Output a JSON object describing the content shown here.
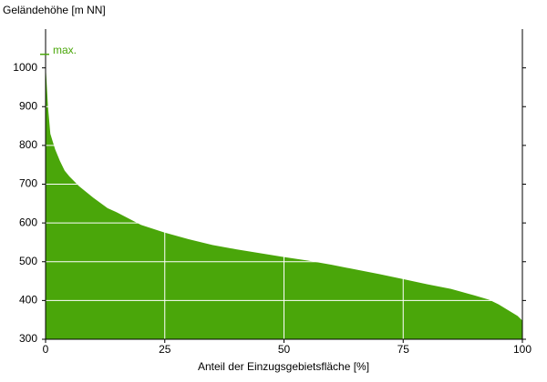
{
  "chart_data": {
    "type": "area",
    "y_label": "Geländehöhe [m NN]",
    "x_label": "Anteil der Einzugsgebietsfläche [%]",
    "x": [
      0,
      0.5,
      1,
      2,
      3,
      4,
      5,
      7,
      10,
      13,
      15,
      20,
      25,
      30,
      35,
      40,
      45,
      50,
      55,
      60,
      65,
      70,
      75,
      80,
      85,
      90,
      93,
      95,
      97,
      99,
      100
    ],
    "values": [
      1010,
      900,
      830,
      790,
      760,
      735,
      720,
      695,
      665,
      638,
      627,
      595,
      575,
      558,
      543,
      532,
      522,
      512,
      503,
      492,
      480,
      468,
      455,
      442,
      430,
      413,
      402,
      390,
      375,
      360,
      348
    ],
    "color": "#4aa60a",
    "annotation": {
      "text": "max.",
      "value": 1035
    },
    "xlim": [
      0,
      100
    ],
    "xticks": [
      0,
      25,
      50,
      75,
      100
    ],
    "ylim": [
      300,
      1100
    ],
    "yticks": [
      300,
      400,
      500,
      600,
      700,
      800,
      900,
      1000
    ],
    "grid": true
  }
}
